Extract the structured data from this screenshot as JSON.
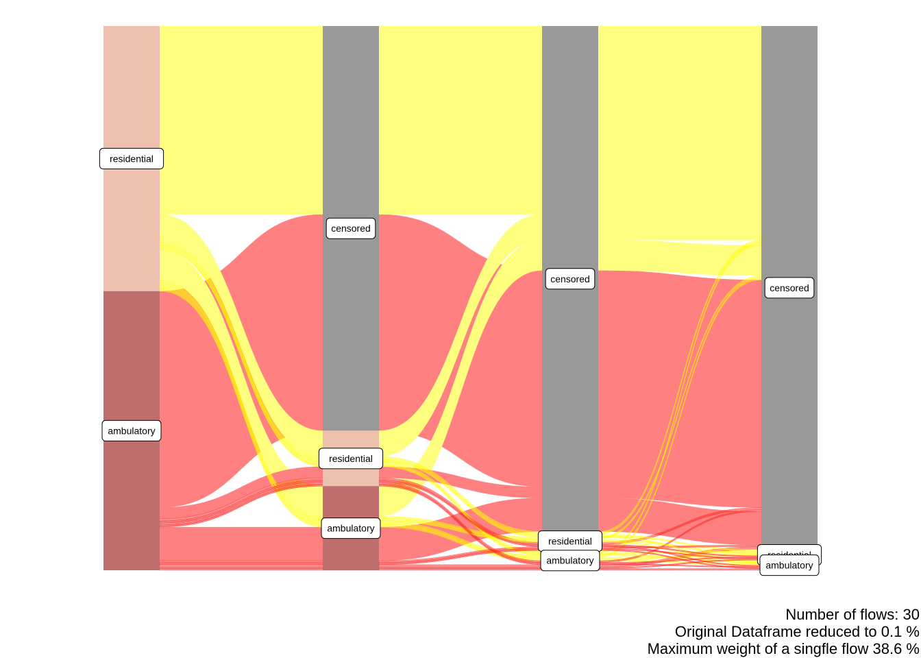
{
  "colors": {
    "residential": "#EDC1AE",
    "ambulatory": "#BF6E6E",
    "censored": "#999999",
    "flow_residential": "#FFFF7F",
    "flow_ambulatory": "#FF8080",
    "flow_residential_thin": "#FFFF00",
    "flow_ambulatory_thin": "#FF2020"
  },
  "axes": [
    {
      "strata": [
        {
          "id": "residential",
          "label": "residential"
        },
        {
          "id": "ambulatory",
          "label": "ambulatory"
        }
      ]
    },
    {
      "strata": [
        {
          "id": "censored",
          "label": "censored"
        },
        {
          "id": "residential",
          "label": "residential"
        },
        {
          "id": "ambulatory",
          "label": "ambulatory"
        }
      ]
    },
    {
      "strata": [
        {
          "id": "censored",
          "label": "censored"
        },
        {
          "id": "residential",
          "label": "residential"
        },
        {
          "id": "ambulatory",
          "label": "ambulatory"
        }
      ]
    },
    {
      "strata": [
        {
          "id": "censored",
          "label": "censored"
        },
        {
          "id": "residential",
          "label": "residential"
        },
        {
          "id": "ambulatory",
          "label": "ambulatory"
        }
      ]
    }
  ],
  "flows": [
    {
      "path": [
        "residential",
        "censored",
        "censored",
        "censored"
      ],
      "weight": 33.6
    },
    {
      "path": [
        "ambulatory",
        "censored",
        "censored",
        "censored"
      ],
      "weight": 38.6
    },
    {
      "path": [
        "residential",
        "residential",
        "censored",
        "censored"
      ],
      "weight": 4.6
    },
    {
      "path": [
        "ambulatory",
        "residential",
        "censored",
        "censored"
      ],
      "weight": 2.0
    },
    {
      "path": [
        "residential",
        "ambulatory",
        "censored",
        "censored"
      ],
      "weight": 5.4
    },
    {
      "path": [
        "ambulatory",
        "ambulatory",
        "censored",
        "censored"
      ],
      "weight": 6.0
    },
    {
      "path": [
        "residential",
        "residential",
        "residential",
        "censored"
      ],
      "weight": 0.5
    },
    {
      "path": [
        "ambulatory",
        "residential",
        "residential",
        "censored"
      ],
      "weight": 0.4
    },
    {
      "path": [
        "residential",
        "ambulatory",
        "residential",
        "censored"
      ],
      "weight": 0.4
    },
    {
      "path": [
        "ambulatory",
        "ambulatory",
        "residential",
        "censored"
      ],
      "weight": 0.3
    },
    {
      "path": [
        "residential",
        "residential",
        "ambulatory",
        "censored"
      ],
      "weight": 0.4
    },
    {
      "path": [
        "ambulatory",
        "residential",
        "ambulatory",
        "censored"
      ],
      "weight": 0.3
    },
    {
      "path": [
        "residential",
        "ambulatory",
        "ambulatory",
        "censored"
      ],
      "weight": 0.4
    },
    {
      "path": [
        "ambulatory",
        "ambulatory",
        "ambulatory",
        "censored"
      ],
      "weight": 0.5
    },
    {
      "path": [
        "residential",
        "residential",
        "residential",
        "residential"
      ],
      "weight": 0.3
    },
    {
      "path": [
        "ambulatory",
        "residential",
        "residential",
        "residential"
      ],
      "weight": 0.2
    },
    {
      "path": [
        "residential",
        "ambulatory",
        "residential",
        "residential"
      ],
      "weight": 0.3
    },
    {
      "path": [
        "ambulatory",
        "ambulatory",
        "residential",
        "residential"
      ],
      "weight": 0.2
    },
    {
      "path": [
        "residential",
        "residential",
        "ambulatory",
        "residential"
      ],
      "weight": 0.2
    },
    {
      "path": [
        "ambulatory",
        "residential",
        "ambulatory",
        "residential"
      ],
      "weight": 0.2
    },
    {
      "path": [
        "residential",
        "ambulatory",
        "ambulatory",
        "residential"
      ],
      "weight": 0.3
    },
    {
      "path": [
        "ambulatory",
        "ambulatory",
        "ambulatory",
        "residential"
      ],
      "weight": 0.2
    },
    {
      "path": [
        "residential",
        "residential",
        "residential",
        "ambulatory"
      ],
      "weight": 0.2
    },
    {
      "path": [
        "ambulatory",
        "residential",
        "residential",
        "ambulatory"
      ],
      "weight": 0.2
    },
    {
      "path": [
        "residential",
        "ambulatory",
        "residential",
        "ambulatory"
      ],
      "weight": 0.2
    },
    {
      "path": [
        "ambulatory",
        "ambulatory",
        "residential",
        "ambulatory"
      ],
      "weight": 0.2
    },
    {
      "path": [
        "residential",
        "residential",
        "ambulatory",
        "ambulatory"
      ],
      "weight": 0.2
    },
    {
      "path": [
        "ambulatory",
        "residential",
        "ambulatory",
        "ambulatory"
      ],
      "weight": 0.2
    },
    {
      "path": [
        "residential",
        "ambulatory",
        "ambulatory",
        "ambulatory"
      ],
      "weight": 0.3
    },
    {
      "path": [
        "ambulatory",
        "ambulatory",
        "ambulatory",
        "ambulatory"
      ],
      "weight": 0.3
    }
  ],
  "caption": {
    "line1": "Number of flows: 30",
    "line2": "Original Dataframe reduced to 0.1 %",
    "line3": "Maximum weight of a singfle flow 38.6 %"
  }
}
